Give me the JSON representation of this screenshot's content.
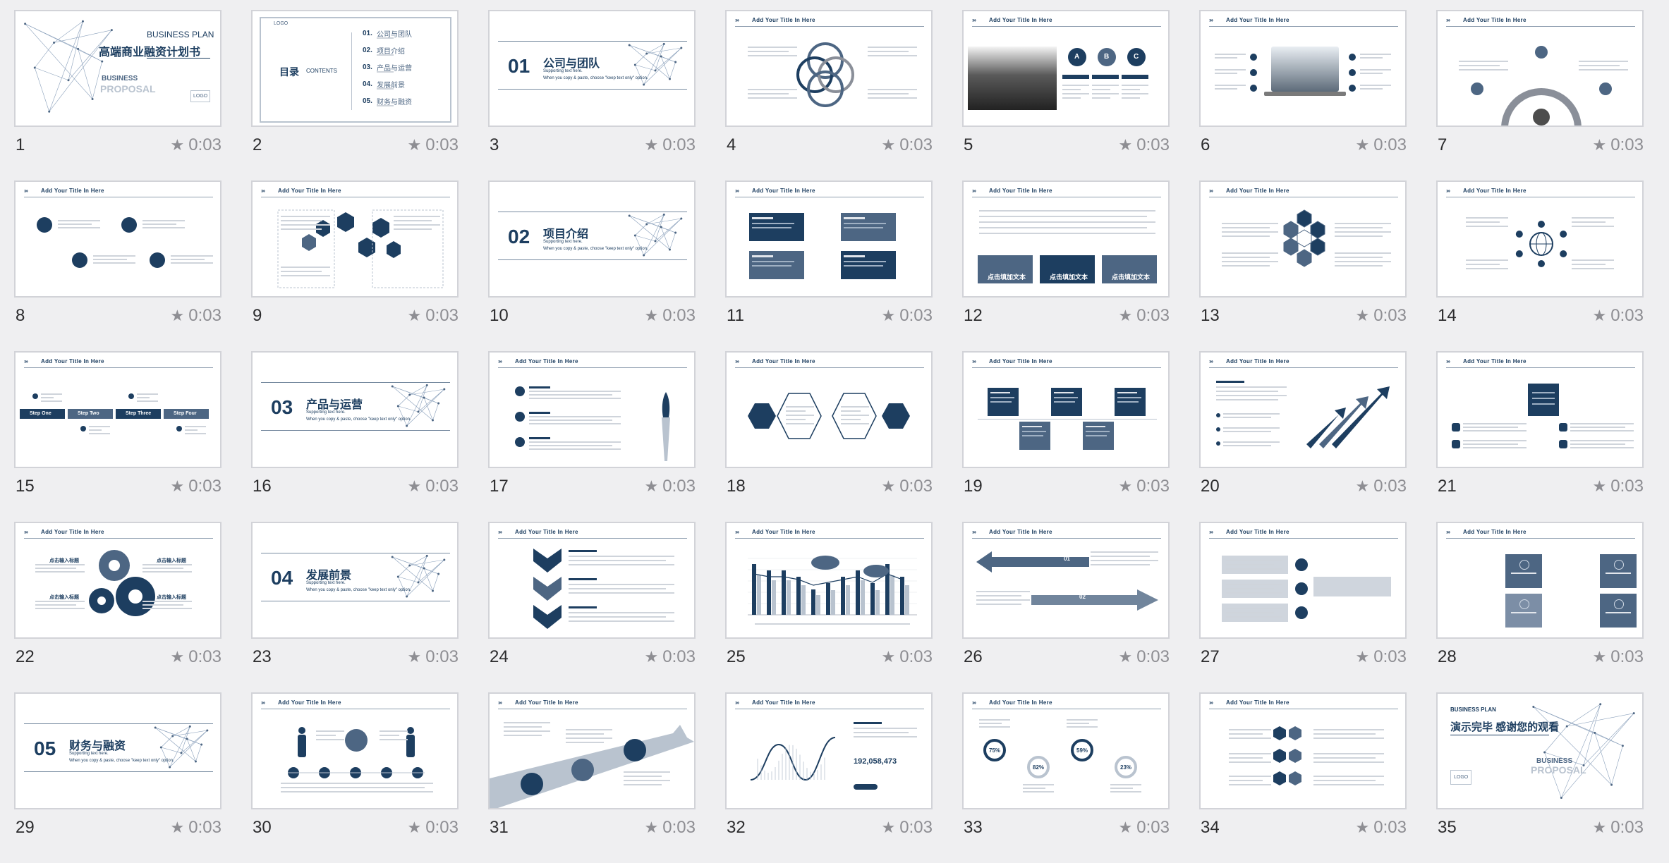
{
  "app": {
    "view": "slide-sorter"
  },
  "timing_label": "0:03",
  "slide_header": "Add Your Title In Here",
  "colors": {
    "dark": "#1d3e60",
    "mid": "#4d6683",
    "light": "#b9c3cf",
    "meta": "#8e8e93"
  },
  "slides": [
    {
      "num": "1",
      "type": "cover",
      "title_en": "BUSINESS  PLAN",
      "title_cn": "高端商业融资计划书",
      "sub1": "BUSINESS",
      "sub2": "PROPOSAL",
      "logo": "LOGO"
    },
    {
      "num": "2",
      "type": "toc",
      "logo": "LOGO",
      "toc_cn": "目录",
      "toc_en": "CONTENTS",
      "items": [
        {
          "n": "01.",
          "t": "公司与团队"
        },
        {
          "n": "02.",
          "t": "项目介绍"
        },
        {
          "n": "03.",
          "t": "产品与运营"
        },
        {
          "n": "04.",
          "t": "发展前景"
        },
        {
          "n": "05.",
          "t": "财务与融资"
        }
      ]
    },
    {
      "num": "3",
      "type": "section",
      "sn": "01",
      "st": "公司与团队",
      "sup": "Supporting text here.",
      "note": "When you copy & paste, choose \"keep text only\" option."
    },
    {
      "num": "4",
      "type": "circles"
    },
    {
      "num": "5",
      "type": "photo-abc",
      "labels": [
        "A",
        "B",
        "C"
      ]
    },
    {
      "num": "6",
      "type": "laptop"
    },
    {
      "num": "7",
      "type": "arc"
    },
    {
      "num": "8",
      "type": "icons4"
    },
    {
      "num": "9",
      "type": "hex"
    },
    {
      "num": "10",
      "type": "section",
      "sn": "02",
      "st": "项目介绍",
      "sup": "Supporting text here.",
      "note": "When you copy & paste, choose \"keep text only\" option."
    },
    {
      "num": "11",
      "type": "boxes4"
    },
    {
      "num": "12",
      "type": "money",
      "cards": [
        "点击填加文本",
        "点击填加文本",
        "点击填加文本"
      ]
    },
    {
      "num": "13",
      "type": "hexcluster"
    },
    {
      "num": "14",
      "type": "globe"
    },
    {
      "num": "15",
      "type": "steps",
      "steps": [
        "Step One",
        "Step Two",
        "Step Three",
        "Step Four"
      ]
    },
    {
      "num": "16",
      "type": "section",
      "sn": "03",
      "st": "产品与运营",
      "sup": "Supporting text here.",
      "note": "When you copy & paste, choose \"keep text only\" option."
    },
    {
      "num": "17",
      "type": "rocket"
    },
    {
      "num": "18",
      "type": "hexpair"
    },
    {
      "num": "19",
      "type": "timeline"
    },
    {
      "num": "20",
      "type": "arrows"
    },
    {
      "num": "21",
      "type": "center-box"
    },
    {
      "num": "22",
      "type": "gears",
      "labels": [
        "点击输入标题",
        "点击输入标题",
        "点击输入标题",
        "点击输入标题"
      ]
    },
    {
      "num": "23",
      "type": "section",
      "sn": "04",
      "st": "发展前景",
      "sup": "Supporting text here.",
      "note": "When you copy & paste, choose \"keep text only\" option."
    },
    {
      "num": "24",
      "type": "chevrons"
    },
    {
      "num": "25",
      "type": "barchart"
    },
    {
      "num": "26",
      "type": "big-arrows",
      "n1": "01",
      "n2": "02"
    },
    {
      "num": "27",
      "type": "funnel"
    },
    {
      "num": "28",
      "type": "tiles"
    },
    {
      "num": "29",
      "type": "section",
      "sn": "05",
      "st": "财务与融资",
      "sup": "Supporting text here.",
      "note": "When you copy & paste, choose \"keep text only\" option."
    },
    {
      "num": "30",
      "type": "people"
    },
    {
      "num": "31",
      "type": "road"
    },
    {
      "num": "32",
      "type": "wave",
      "figure": "192,058,473"
    },
    {
      "num": "33",
      "type": "rings",
      "pcts": [
        "75%",
        "82%",
        "59%",
        "23%"
      ]
    },
    {
      "num": "34",
      "type": "hexicons"
    },
    {
      "num": "35",
      "type": "end",
      "title_en": "BUSINESS  PLAN",
      "title_cn": "演示完毕 感谢您的观看",
      "sub1": "BUSINESS",
      "sub2": "PROPOSAL",
      "logo": "LOGO"
    }
  ]
}
